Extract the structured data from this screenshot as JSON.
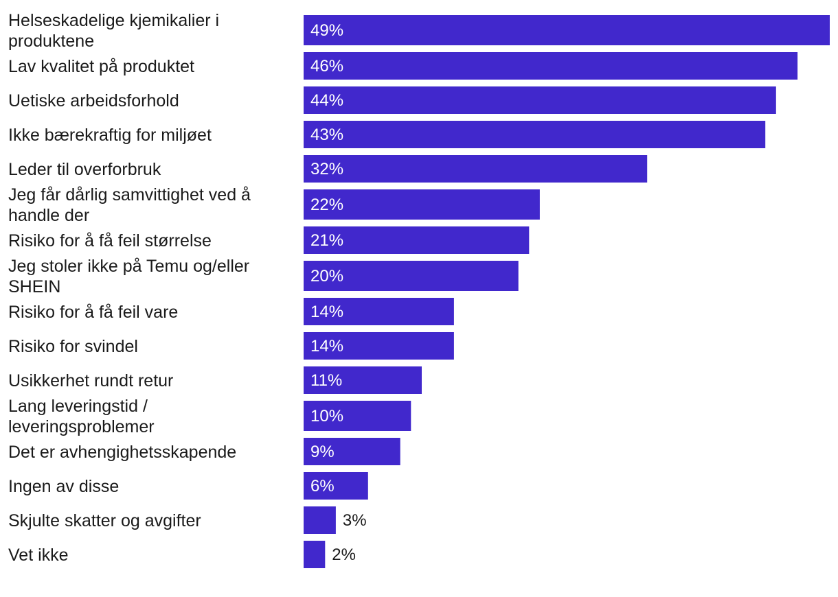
{
  "chart_data": {
    "type": "bar",
    "orientation": "horizontal",
    "categories": [
      [
        "Helseskadelige kjemikalier i",
        "produktene"
      ],
      [
        "Lav kvalitet på produktet"
      ],
      [
        "Uetiske arbeidsforhold"
      ],
      [
        "Ikke bærekraftig for miljøet"
      ],
      [
        "Leder til overforbruk"
      ],
      [
        "Jeg får dårlig samvittighet ved å",
        "handle der"
      ],
      [
        "Risiko for å få feil størrelse"
      ],
      [
        "Jeg stoler ikke på Temu og/eller",
        "SHEIN"
      ],
      [
        "Risiko for å få feil vare"
      ],
      [
        "Risiko for svindel"
      ],
      [
        "Usikkerhet rundt retur"
      ],
      [
        "Lang leveringstid /",
        "leveringsproblemer"
      ],
      [
        "Det er avhengighetsskapende"
      ],
      [
        "Ingen av disse"
      ],
      [
        "Skjulte skatter og avgifter"
      ],
      [
        "Vet ikke"
      ]
    ],
    "values": [
      49,
      46,
      44,
      43,
      32,
      22,
      21,
      20,
      14,
      14,
      11,
      10,
      9,
      6,
      3,
      2
    ],
    "value_labels": [
      "49%",
      "46%",
      "44%",
      "43%",
      "32%",
      "22%",
      "21%",
      "20%",
      "14%",
      "14%",
      "11%",
      "10%",
      "9%",
      "6%",
      "3%",
      "2%"
    ],
    "xlim": [
      0,
      49
    ],
    "grid": false,
    "legend": "none",
    "colors": {
      "bar": "#4128cc",
      "label_inside": "#ffffff",
      "label_outside": "#1a1a1a"
    }
  }
}
